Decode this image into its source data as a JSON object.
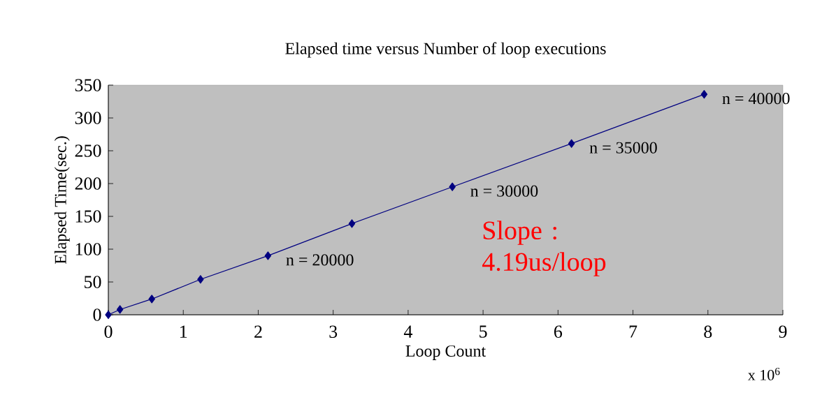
{
  "chart_data": {
    "type": "line",
    "title": "Elapsed time versus Number of loop executions",
    "xlabel": "Loop Count",
    "ylabel": "Elapsed Time(sec.)",
    "x": [
      0,
      0.155,
      0.58,
      1.23,
      2.13,
      3.25,
      4.59,
      6.18,
      7.95
    ],
    "values": [
      0,
      8,
      24,
      54,
      90,
      139,
      195,
      261,
      336
    ],
    "color": "#000080",
    "marker": "diamond",
    "line_style": "solid",
    "xlim": [
      0,
      9
    ],
    "ylim": [
      0,
      350
    ],
    "xticks": [
      0,
      1,
      2,
      3,
      4,
      5,
      6,
      7,
      8,
      9
    ],
    "yticks": [
      0,
      50,
      100,
      150,
      200,
      250,
      300,
      350
    ],
    "grid": false,
    "annotations": [
      {
        "text": "n = 20000",
        "x": 2.13,
        "y": 90
      },
      {
        "text": "n = 30000",
        "x": 4.59,
        "y": 195
      },
      {
        "text": "n = 35000",
        "x": 6.18,
        "y": 261
      },
      {
        "text": "n = 40000",
        "x": 7.95,
        "y": 336
      },
      "Slope : 4.19us/loop",
      "x 10$^{6}$"
    ]
  }
}
